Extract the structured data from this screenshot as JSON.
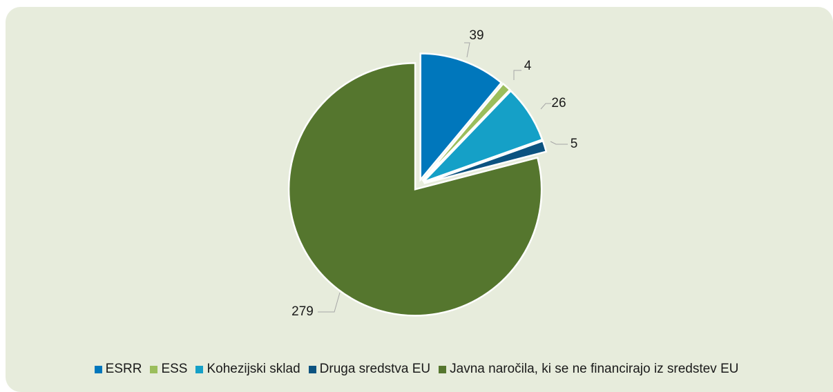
{
  "chart_data": {
    "type": "pie",
    "title": "",
    "series": [
      {
        "values": [
          39,
          4,
          26,
          5,
          279
        ],
        "categories": [
          "ESRR",
          "ESS",
          "Kohezijski sklad",
          "Druga sredstva EU",
          "Javna naročila, ki se ne financirajo iz sredstev EU"
        ],
        "colors": [
          "#0077bc",
          "#9bbe5c",
          "#15a0c7",
          "#0c5380",
          "#55762e"
        ]
      }
    ],
    "exploded": true,
    "start_angle_deg": 0,
    "direction": "clockwise",
    "legend_position": "bottom",
    "data_labels": [
      "39",
      "4",
      "26",
      "5",
      "279"
    ]
  }
}
